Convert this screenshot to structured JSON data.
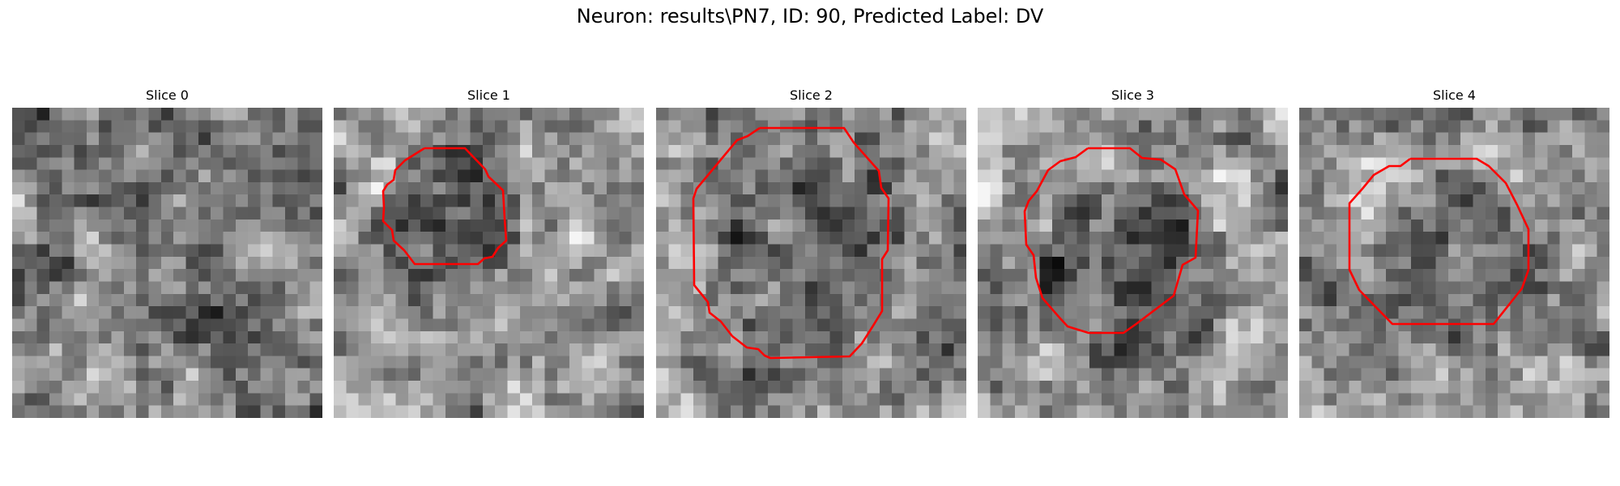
{
  "figure": {
    "suptitle": "Neuron: results\\PN7, ID: 90, Predicted Label: DV"
  },
  "colors": {
    "contour": "#ff0000",
    "colormap": "gray"
  },
  "panels": [
    {
      "title": "Slice 0",
      "has_contour": false
    },
    {
      "title": "Slice 1",
      "has_contour": true
    },
    {
      "title": "Slice 2",
      "has_contour": true
    },
    {
      "title": "Slice 3",
      "has_contour": true
    },
    {
      "title": "Slice 4",
      "has_contour": true
    }
  ]
}
